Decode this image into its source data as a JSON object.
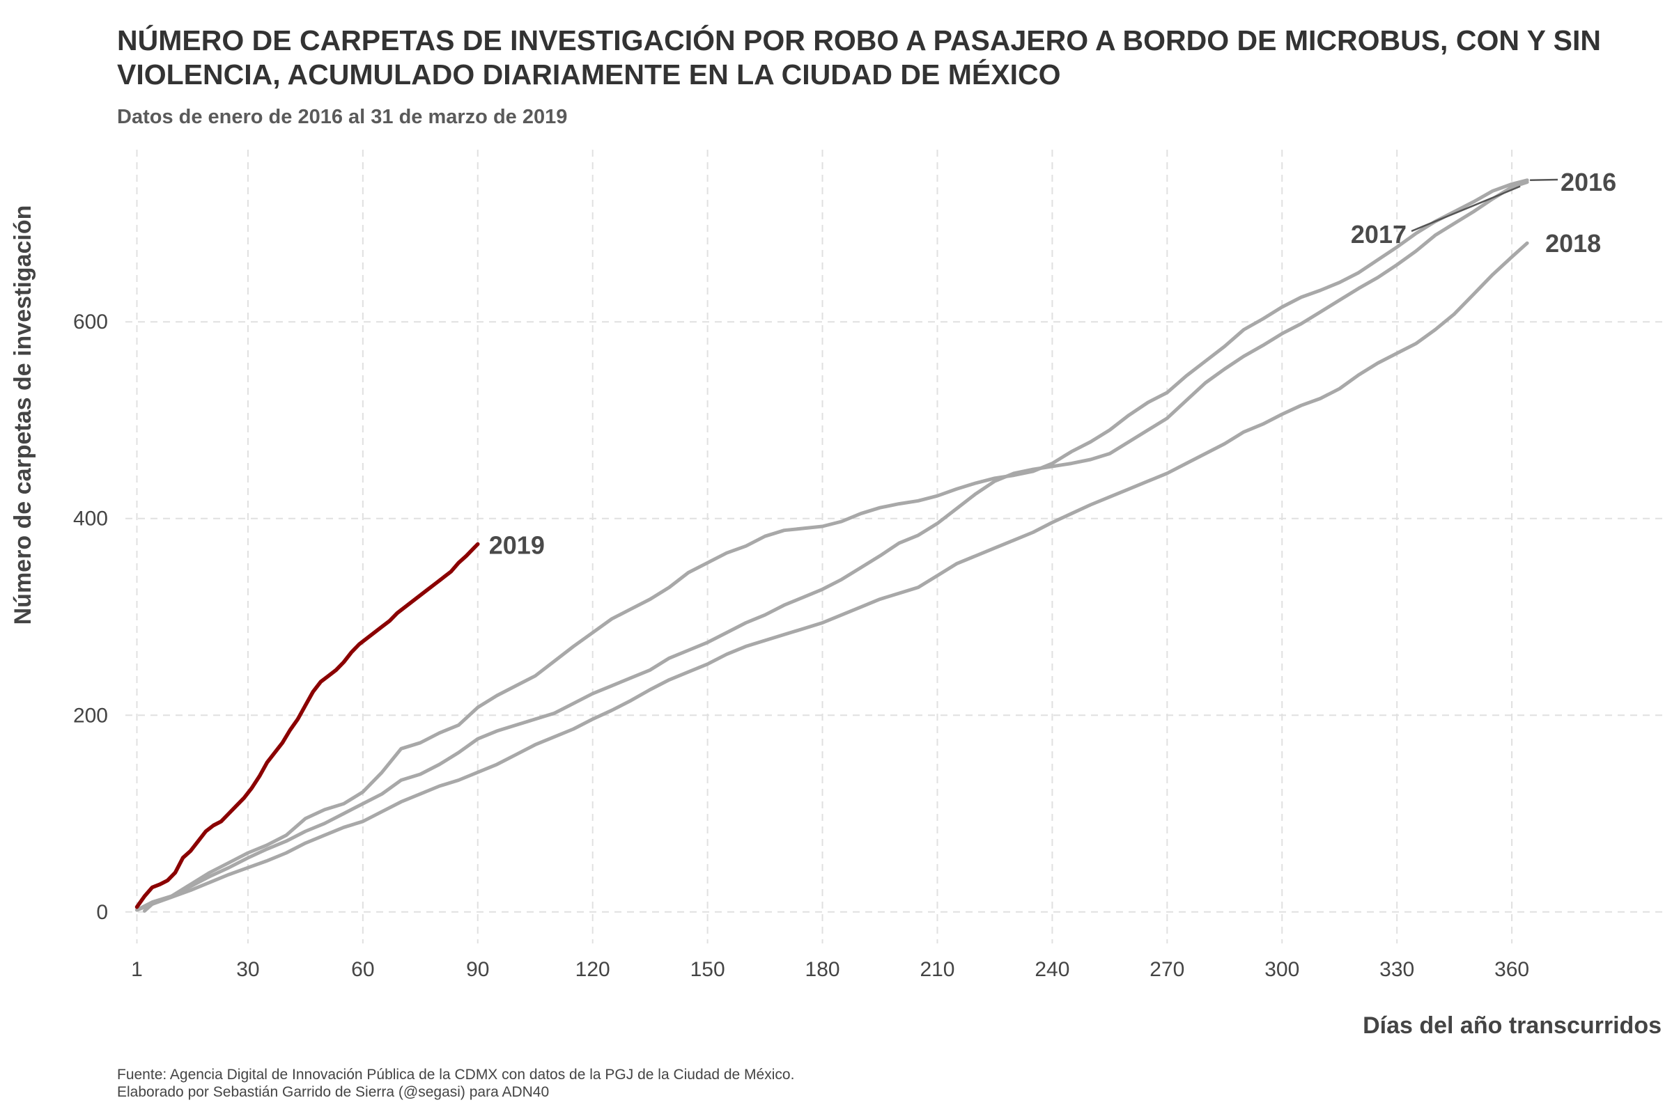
{
  "chart_data": {
    "type": "line",
    "title": "NÚMERO DE CARPETAS DE INVESTIGACIÓN POR ROBO A PASAJERO A BORDO DE MICROBUS, CON Y SIN VIOLENCIA, ACUMULADO DIARIAMENTE EN LA CIUDAD DE MÉXICO",
    "subtitle": "Datos de enero de 2016 al 31 de marzo de 2019",
    "xlabel": "Días del año transcurridos",
    "ylabel": "Número de carpetas de investigación",
    "caption": [
      "Fuente: Agencia Digital de Innovación Pública de la CDMX con datos de la PGJ de la Ciudad de México.",
      "Elaborado por Sebastián Garrido de Sierra (@segasi) para ADN40"
    ],
    "xlim": [
      -2,
      400
    ],
    "ylim": [
      -32,
      775
    ],
    "x_ticks": [
      1,
      30,
      60,
      90,
      120,
      150,
      180,
      210,
      240,
      270,
      300,
      330,
      360
    ],
    "y_ticks": [
      0,
      200,
      400,
      600
    ],
    "grid": true,
    "legend": "none",
    "colors": {
      "highlight": "#8b0000",
      "past_years": "#a8a8a8",
      "label_line": "#555555"
    },
    "series": [
      {
        "name": "2016",
        "color": "#a8a8a8",
        "points": [
          [
            1,
            2
          ],
          [
            5,
            10
          ],
          [
            10,
            16
          ],
          [
            15,
            28
          ],
          [
            20,
            40
          ],
          [
            25,
            50
          ],
          [
            30,
            60
          ],
          [
            35,
            68
          ],
          [
            40,
            78
          ],
          [
            45,
            95
          ],
          [
            50,
            104
          ],
          [
            55,
            110
          ],
          [
            60,
            122
          ],
          [
            65,
            142
          ],
          [
            70,
            166
          ],
          [
            75,
            172
          ],
          [
            80,
            182
          ],
          [
            85,
            190
          ],
          [
            90,
            208
          ],
          [
            95,
            220
          ],
          [
            100,
            230
          ],
          [
            105,
            240
          ],
          [
            110,
            255
          ],
          [
            115,
            270
          ],
          [
            120,
            284
          ],
          [
            125,
            298
          ],
          [
            130,
            308
          ],
          [
            135,
            318
          ],
          [
            140,
            330
          ],
          [
            145,
            345
          ],
          [
            150,
            355
          ],
          [
            155,
            365
          ],
          [
            160,
            372
          ],
          [
            165,
            382
          ],
          [
            170,
            388
          ],
          [
            175,
            390
          ],
          [
            180,
            392
          ],
          [
            185,
            397
          ],
          [
            190,
            405
          ],
          [
            195,
            411
          ],
          [
            200,
            415
          ],
          [
            205,
            418
          ],
          [
            210,
            423
          ],
          [
            215,
            430
          ],
          [
            220,
            436
          ],
          [
            225,
            441
          ],
          [
            230,
            444
          ],
          [
            235,
            448
          ],
          [
            240,
            456
          ],
          [
            245,
            468
          ],
          [
            250,
            478
          ],
          [
            255,
            490
          ],
          [
            260,
            505
          ],
          [
            265,
            518
          ],
          [
            270,
            528
          ],
          [
            275,
            545
          ],
          [
            280,
            560
          ],
          [
            285,
            575
          ],
          [
            290,
            592
          ],
          [
            295,
            603
          ],
          [
            300,
            615
          ],
          [
            305,
            625
          ],
          [
            310,
            632
          ],
          [
            315,
            640
          ],
          [
            320,
            650
          ],
          [
            325,
            663
          ],
          [
            330,
            676
          ],
          [
            335,
            690
          ],
          [
            340,
            702
          ],
          [
            345,
            712
          ],
          [
            350,
            722
          ],
          [
            355,
            733
          ],
          [
            360,
            740
          ],
          [
            364,
            744
          ]
        ]
      },
      {
        "name": "2017",
        "color": "#a8a8a8",
        "points": [
          [
            1,
            2
          ],
          [
            5,
            8
          ],
          [
            10,
            16
          ],
          [
            15,
            26
          ],
          [
            20,
            36
          ],
          [
            25,
            45
          ],
          [
            30,
            55
          ],
          [
            35,
            64
          ],
          [
            40,
            72
          ],
          [
            45,
            82
          ],
          [
            50,
            90
          ],
          [
            55,
            100
          ],
          [
            60,
            110
          ],
          [
            65,
            120
          ],
          [
            70,
            134
          ],
          [
            75,
            140
          ],
          [
            80,
            150
          ],
          [
            85,
            162
          ],
          [
            90,
            176
          ],
          [
            95,
            184
          ],
          [
            100,
            190
          ],
          [
            105,
            196
          ],
          [
            110,
            202
          ],
          [
            115,
            212
          ],
          [
            120,
            222
          ],
          [
            125,
            230
          ],
          [
            130,
            238
          ],
          [
            135,
            246
          ],
          [
            140,
            258
          ],
          [
            145,
            266
          ],
          [
            150,
            274
          ],
          [
            155,
            284
          ],
          [
            160,
            294
          ],
          [
            165,
            302
          ],
          [
            170,
            312
          ],
          [
            175,
            320
          ],
          [
            180,
            328
          ],
          [
            185,
            338
          ],
          [
            190,
            350
          ],
          [
            195,
            362
          ],
          [
            200,
            375
          ],
          [
            205,
            383
          ],
          [
            210,
            395
          ],
          [
            215,
            410
          ],
          [
            220,
            425
          ],
          [
            225,
            438
          ],
          [
            230,
            446
          ],
          [
            235,
            450
          ],
          [
            240,
            453
          ],
          [
            245,
            456
          ],
          [
            250,
            460
          ],
          [
            255,
            466
          ],
          [
            260,
            478
          ],
          [
            265,
            490
          ],
          [
            270,
            502
          ],
          [
            275,
            520
          ],
          [
            280,
            538
          ],
          [
            285,
            552
          ],
          [
            290,
            565
          ],
          [
            295,
            576
          ],
          [
            300,
            588
          ],
          [
            305,
            598
          ],
          [
            310,
            610
          ],
          [
            315,
            622
          ],
          [
            320,
            634
          ],
          [
            325,
            645
          ],
          [
            330,
            658
          ],
          [
            335,
            672
          ],
          [
            340,
            688
          ],
          [
            345,
            700
          ],
          [
            350,
            712
          ],
          [
            355,
            725
          ],
          [
            360,
            737
          ],
          [
            364,
            742
          ]
        ]
      },
      {
        "name": "2018",
        "color": "#a8a8a8",
        "points": [
          [
            3,
            1
          ],
          [
            5,
            8
          ],
          [
            10,
            15
          ],
          [
            15,
            22
          ],
          [
            20,
            30
          ],
          [
            25,
            38
          ],
          [
            30,
            45
          ],
          [
            35,
            52
          ],
          [
            40,
            60
          ],
          [
            45,
            70
          ],
          [
            50,
            78
          ],
          [
            55,
            86
          ],
          [
            60,
            92
          ],
          [
            65,
            102
          ],
          [
            70,
            112
          ],
          [
            75,
            120
          ],
          [
            80,
            128
          ],
          [
            85,
            134
          ],
          [
            90,
            142
          ],
          [
            95,
            150
          ],
          [
            100,
            160
          ],
          [
            105,
            170
          ],
          [
            110,
            178
          ],
          [
            115,
            186
          ],
          [
            120,
            196
          ],
          [
            125,
            205
          ],
          [
            130,
            215
          ],
          [
            135,
            226
          ],
          [
            140,
            236
          ],
          [
            145,
            244
          ],
          [
            150,
            252
          ],
          [
            155,
            262
          ],
          [
            160,
            270
          ],
          [
            165,
            276
          ],
          [
            170,
            282
          ],
          [
            175,
            288
          ],
          [
            180,
            294
          ],
          [
            185,
            302
          ],
          [
            190,
            310
          ],
          [
            195,
            318
          ],
          [
            200,
            324
          ],
          [
            205,
            330
          ],
          [
            210,
            342
          ],
          [
            215,
            354
          ],
          [
            220,
            362
          ],
          [
            225,
            370
          ],
          [
            230,
            378
          ],
          [
            235,
            386
          ],
          [
            240,
            396
          ],
          [
            245,
            405
          ],
          [
            250,
            414
          ],
          [
            255,
            422
          ],
          [
            260,
            430
          ],
          [
            265,
            438
          ],
          [
            270,
            446
          ],
          [
            275,
            456
          ],
          [
            280,
            466
          ],
          [
            285,
            476
          ],
          [
            290,
            488
          ],
          [
            295,
            496
          ],
          [
            300,
            506
          ],
          [
            305,
            515
          ],
          [
            310,
            522
          ],
          [
            315,
            532
          ],
          [
            320,
            546
          ],
          [
            325,
            558
          ],
          [
            330,
            568
          ],
          [
            335,
            578
          ],
          [
            340,
            592
          ],
          [
            345,
            608
          ],
          [
            350,
            628
          ],
          [
            355,
            648
          ],
          [
            360,
            666
          ],
          [
            364,
            680
          ]
        ]
      },
      {
        "name": "2019",
        "color": "#8b0000",
        "points": [
          [
            1,
            5
          ],
          [
            3,
            16
          ],
          [
            5,
            25
          ],
          [
            7,
            28
          ],
          [
            9,
            32
          ],
          [
            11,
            40
          ],
          [
            13,
            55
          ],
          [
            15,
            62
          ],
          [
            17,
            72
          ],
          [
            19,
            82
          ],
          [
            21,
            88
          ],
          [
            23,
            92
          ],
          [
            25,
            100
          ],
          [
            27,
            108
          ],
          [
            29,
            116
          ],
          [
            31,
            126
          ],
          [
            33,
            138
          ],
          [
            35,
            152
          ],
          [
            37,
            162
          ],
          [
            39,
            172
          ],
          [
            41,
            185
          ],
          [
            43,
            196
          ],
          [
            45,
            210
          ],
          [
            47,
            224
          ],
          [
            49,
            234
          ],
          [
            51,
            240
          ],
          [
            53,
            246
          ],
          [
            55,
            254
          ],
          [
            57,
            264
          ],
          [
            59,
            272
          ],
          [
            61,
            278
          ],
          [
            63,
            284
          ],
          [
            65,
            290
          ],
          [
            67,
            296
          ],
          [
            69,
            304
          ],
          [
            71,
            310
          ],
          [
            73,
            316
          ],
          [
            75,
            322
          ],
          [
            77,
            328
          ],
          [
            79,
            334
          ],
          [
            81,
            340
          ],
          [
            83,
            346
          ],
          [
            85,
            355
          ],
          [
            87,
            362
          ],
          [
            89,
            370
          ],
          [
            90,
            374
          ]
        ]
      }
    ],
    "labels": [
      "2016",
      "2017",
      "2018",
      "2019"
    ]
  }
}
